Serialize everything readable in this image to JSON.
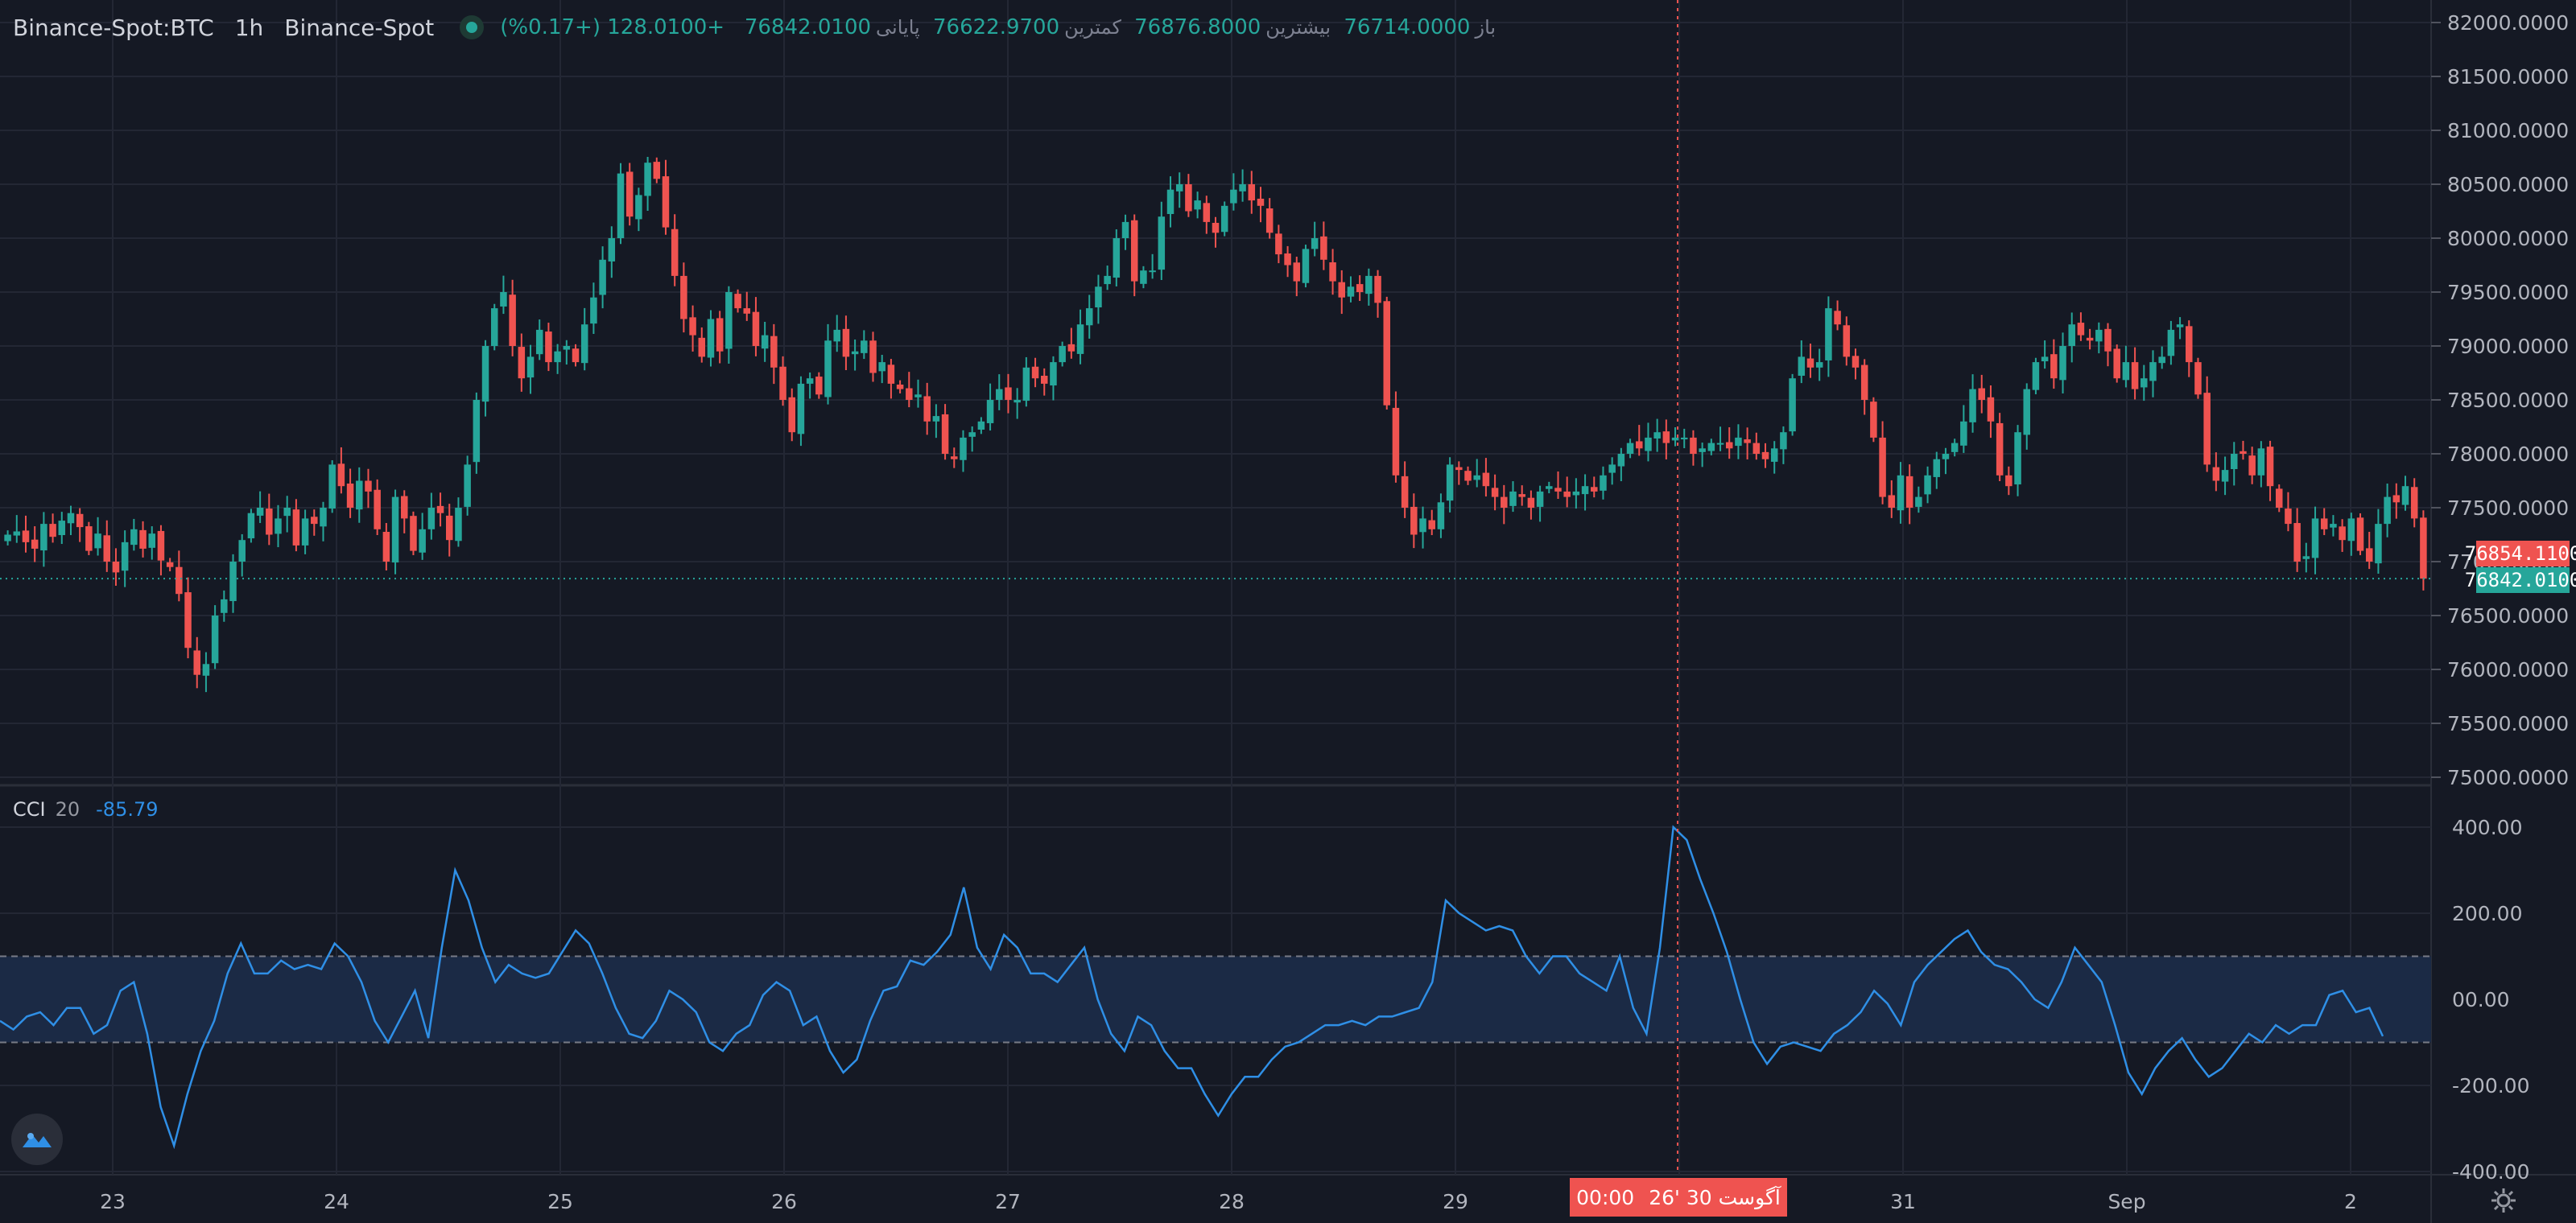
{
  "header": {
    "symbol": "Binance-Spot:BTC",
    "interval": "1h",
    "exchange": "Binance-Spot",
    "open_label": "باز",
    "open_value": "76714.0000",
    "high_label": "بیشترین",
    "high_value": "76876.8000",
    "low_label": "کمترین",
    "low_value": "76622.9700",
    "close_label": "پایانی",
    "close_value": "76842.0100",
    "change": "+128.0100 (+0.17%)"
  },
  "price_badges": {
    "crosshair_price": "76854.1100",
    "last_price": "76842.0100"
  },
  "crosshair_time": {
    "time": "00:00",
    "date": "آگوست 30 '26"
  },
  "colors": {
    "background": "#151924",
    "up": "#26a69a",
    "down": "#ef5350",
    "cci_line": "#2f8fe6",
    "cci_band": "#1b2a45",
    "grid": "#232734",
    "crosshair": "#ef5350"
  },
  "icons": {
    "logo": "cloud-mountain-logo-icon",
    "settings": "gear-icon",
    "status": "live-dot-icon"
  },
  "chart_data": [
    {
      "type": "candlestick",
      "title": "Binance-Spot:BTC",
      "interval": "1h",
      "y_ticks": [
        "82000.0000",
        "81500.0000",
        "81000.0000",
        "80500.0000",
        "80000.0000",
        "79500.0000",
        "79000.0000",
        "78500.0000",
        "78000.0000",
        "77500.0000",
        "77000.0000",
        "76500.0000",
        "76000.0000",
        "75500.0000",
        "75000.0000"
      ],
      "ylim": [
        75000,
        82000
      ],
      "x_ticks": [
        "23",
        "24",
        "25",
        "26",
        "27",
        "28",
        "29",
        "30",
        "31",
        "Sep",
        "2"
      ],
      "last_price": 76842.01,
      "candles_close": [
        77250,
        77280,
        77180,
        77120,
        77350,
        77230,
        77380,
        77450,
        77320,
        77100,
        77260,
        77000,
        76900,
        77180,
        77300,
        77120,
        77260,
        77010,
        76950,
        76700,
        76200,
        75950,
        76050,
        76500,
        76650,
        77000,
        77200,
        77450,
        77500,
        77250,
        77400,
        77500,
        77150,
        77400,
        77350,
        77500,
        77900,
        77700,
        77500,
        77750,
        77650,
        77300,
        77000,
        77600,
        77400,
        77100,
        77300,
        77500,
        77450,
        77200,
        77500,
        77900,
        78500,
        79000,
        79350,
        79500,
        79000,
        78700,
        78900,
        79150,
        78850,
        78950,
        79000,
        78850,
        79200,
        79450,
        79800,
        80000,
        80600,
        80200,
        80400,
        80700,
        80550,
        80100,
        79650,
        79250,
        79100,
        78900,
        79250,
        78950,
        79500,
        79350,
        79300,
        79000,
        79100,
        78800,
        78500,
        78200,
        78650,
        78700,
        78550,
        79050,
        79150,
        78900,
        78950,
        79050,
        78750,
        78850,
        78650,
        78600,
        78500,
        78550,
        78300,
        78350,
        78000,
        77950,
        78150,
        78200,
        78300,
        78500,
        78600,
        78500,
        78500,
        78800,
        78700,
        78650,
        78850,
        79000,
        78950,
        79200,
        79350,
        79550,
        79650,
        80000,
        80150,
        79600,
        79700,
        79700,
        80200,
        80450,
        80500,
        80250,
        80350,
        80150,
        80050,
        80300,
        80450,
        80500,
        80350,
        80300,
        80050,
        79850,
        79750,
        79600,
        79900,
        80000,
        79800,
        79600,
        79450,
        79550,
        79500,
        79650,
        79400,
        78450,
        77800,
        77500,
        77250,
        77400,
        77300,
        77550,
        77900,
        77850,
        77750,
        77800,
        77700,
        77600,
        77500,
        77650,
        77600,
        77500,
        77650,
        77700,
        77650,
        77600,
        77650,
        77700,
        77650,
        77800,
        77900,
        78000,
        78100,
        78050,
        78150,
        78200,
        78100,
        78150,
        78150,
        78000,
        78050,
        78100,
        78100,
        78050,
        78150,
        78100,
        78000,
        77950,
        78050,
        78200,
        78700,
        78900,
        78800,
        78850,
        79350,
        79200,
        78900,
        78800,
        78500,
        78150,
        77600,
        77500,
        77800,
        77500,
        77600,
        77800,
        77950,
        78000,
        78100,
        78300,
        78600,
        78500,
        78300,
        77800,
        77700,
        78200,
        78600,
        78850,
        78900,
        78700,
        79000,
        79200,
        79100,
        79050,
        79150,
        78950,
        78700,
        78850,
        78600,
        78700,
        78850,
        78900,
        79150,
        79200,
        78850,
        78550,
        77900,
        77750,
        77850,
        78000,
        78000,
        77800,
        78050,
        77700,
        77500,
        77350,
        77000,
        77050,
        77400,
        77300,
        77350,
        77200,
        77400,
        77100,
        77000,
        77350,
        77600,
        77550,
        77700,
        77400,
        76842
      ],
      "candles_up_color": "#26a69a",
      "candles_down_color": "#ef5350"
    },
    {
      "type": "line",
      "title": "CCI",
      "period": "20",
      "value": "-85.79",
      "y_ticks": [
        "400.00",
        "200.00",
        "00.00",
        "-200.00",
        "-400.00"
      ],
      "ylim": [
        -400,
        400
      ],
      "band": [
        -100,
        100
      ],
      "series": [
        {
          "name": "CCI",
          "values": [
            -50,
            -70,
            -40,
            -30,
            -60,
            -20,
            -20,
            -80,
            -60,
            20,
            40,
            -80,
            -250,
            -340,
            -220,
            -120,
            -50,
            60,
            130,
            60,
            60,
            90,
            70,
            80,
            70,
            130,
            100,
            40,
            -50,
            -100,
            -40,
            20,
            -90,
            120,
            300,
            230,
            120,
            40,
            80,
            60,
            50,
            60,
            110,
            160,
            130,
            60,
            -20,
            -80,
            -90,
            -50,
            20,
            0,
            -30,
            -100,
            -120,
            -80,
            -60,
            10,
            40,
            20,
            -60,
            -40,
            -120,
            -170,
            -140,
            -50,
            20,
            30,
            90,
            80,
            110,
            150,
            260,
            120,
            70,
            150,
            120,
            60,
            60,
            40,
            80,
            120,
            0,
            -80,
            -120,
            -40,
            -60,
            -120,
            -160,
            -160,
            -220,
            -270,
            -220,
            -180,
            -180,
            -140,
            -110,
            -100,
            -80,
            -60,
            -60,
            -50,
            -60,
            -40,
            -40,
            -30,
            -20,
            40,
            230,
            200,
            180,
            160,
            170,
            160,
            100,
            60,
            100,
            100,
            60,
            40,
            20,
            100,
            -20,
            -80,
            120,
            400,
            370,
            280,
            200,
            110,
            0,
            -100,
            -150,
            -110,
            -100,
            -110,
            -120,
            -80,
            -60,
            -30,
            20,
            -10,
            -60,
            40,
            80,
            110,
            140,
            160,
            110,
            80,
            70,
            40,
            0,
            -20,
            40,
            120,
            80,
            40,
            -60,
            -170,
            -220,
            -160,
            -120,
            -90,
            -140,
            -180,
            -160,
            -120,
            -80,
            -100,
            -60,
            -80,
            -60,
            -60,
            10,
            20,
            -30,
            -20,
            -85.79
          ]
        }
      ]
    }
  ]
}
